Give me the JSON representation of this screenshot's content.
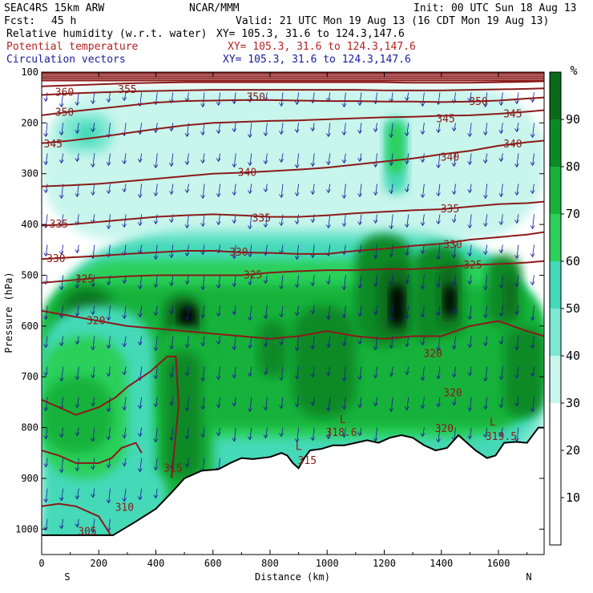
{
  "header": {
    "model": "SEAC4RS 15km ARW",
    "org": "NCAR/MMM",
    "init": "Init: 00 UTC Sun 18 Aug 13",
    "fcst_label": "Fcst:",
    "fcst_value": "45 h",
    "valid": "Valid: 21 UTC Mon 19 Aug 13 (16 CDT Mon 19 Aug 13)",
    "fields": [
      {
        "name": "Relative humidity (w.r.t. water)",
        "xy": "XY= 105.3, 31.6 to 124.3,147.6",
        "color": "#000000"
      },
      {
        "name": "Potential temperature",
        "xy": "XY= 105.3, 31.6 to 124.3,147.6",
        "color": "#b22222"
      },
      {
        "name": "Circulation vectors",
        "xy": "XY= 105.3, 31.6 to 124.3,147.6",
        "color": "#1a1a9c"
      }
    ]
  },
  "chart_data": {
    "type": "heatmap",
    "description_units": "cross-section",
    "xlabel": "Distance (km)",
    "ylabel": "Pressure (hPa)",
    "xlim": [
      0,
      1760
    ],
    "ylim": [
      1050,
      100
    ],
    "x_ticks": [
      0,
      200,
      400,
      600,
      800,
      1000,
      1200,
      1400,
      1600
    ],
    "y_ticks": [
      100,
      200,
      300,
      400,
      500,
      600,
      700,
      800,
      900,
      1000
    ],
    "x_end_labels": {
      "left": "S",
      "right": "N"
    },
    "colorbar": {
      "unit": "%",
      "ticks": [
        10,
        20,
        30,
        40,
        50,
        60,
        70,
        80,
        90
      ],
      "bins": [
        {
          "range": [
            0,
            30
          ],
          "color": "#ffffff"
        },
        {
          "range": [
            30,
            40
          ],
          "color": "#c8f5ec"
        },
        {
          "range": [
            40,
            50
          ],
          "color": "#7ee7d2"
        },
        {
          "range": [
            50,
            60
          ],
          "color": "#44d9b8"
        },
        {
          "range": [
            60,
            70
          ],
          "color": "#2cd05a"
        },
        {
          "range": [
            70,
            80
          ],
          "color": "#18b23a"
        },
        {
          "range": [
            80,
            90
          ],
          "color": "#0a8a25"
        },
        {
          "range": [
            90,
            100
          ],
          "color": "#0a6a1a"
        }
      ]
    },
    "theta_contours": [
      {
        "value": 305,
        "points": [
          [
            0,
            955
          ],
          [
            60,
            950
          ],
          [
            120,
            955
          ],
          [
            200,
            975
          ],
          [
            240,
            1010
          ]
        ]
      },
      {
        "value": 310,
        "points": [
          [
            0,
            845
          ],
          [
            60,
            855
          ],
          [
            120,
            870
          ],
          [
            200,
            870
          ],
          [
            245,
            860
          ],
          [
            280,
            840
          ],
          [
            330,
            830
          ],
          [
            350,
            850
          ]
        ]
      },
      {
        "value": 315,
        "points": [
          [
            0,
            745
          ],
          [
            60,
            760
          ],
          [
            120,
            775
          ],
          [
            200,
            760
          ],
          [
            260,
            740
          ],
          [
            300,
            720
          ],
          [
            380,
            690
          ],
          [
            440,
            660
          ],
          [
            470,
            660
          ],
          [
            480,
            755
          ],
          [
            460,
            870
          ],
          [
            455,
            900
          ]
        ]
      },
      {
        "value": 318.6,
        "labels_only": true,
        "points": [
          [
            1090,
            810
          ]
        ]
      },
      {
        "value": 319.5,
        "labels_only": true,
        "points": [
          [
            1610,
            810
          ]
        ]
      },
      {
        "value": 320,
        "points": [
          [
            0,
            570
          ],
          [
            100,
            580
          ],
          [
            200,
            590
          ],
          [
            300,
            600
          ],
          [
            400,
            605
          ],
          [
            500,
            610
          ],
          [
            600,
            615
          ],
          [
            700,
            620
          ],
          [
            800,
            625
          ],
          [
            900,
            620
          ],
          [
            1000,
            610
          ],
          [
            1100,
            620
          ],
          [
            1200,
            625
          ],
          [
            1300,
            620
          ],
          [
            1400,
            620
          ],
          [
            1500,
            600
          ],
          [
            1600,
            590
          ],
          [
            1700,
            610
          ],
          [
            1760,
            620
          ]
        ]
      },
      {
        "value": 325,
        "points": [
          [
            0,
            515
          ],
          [
            100,
            510
          ],
          [
            200,
            505
          ],
          [
            300,
            502
          ],
          [
            400,
            500
          ],
          [
            500,
            500
          ],
          [
            600,
            500
          ],
          [
            700,
            500
          ],
          [
            800,
            495
          ],
          [
            900,
            492
          ],
          [
            1000,
            490
          ],
          [
            1100,
            490
          ],
          [
            1200,
            488
          ],
          [
            1300,
            488
          ],
          [
            1400,
            485
          ],
          [
            1500,
            480
          ],
          [
            1600,
            478
          ],
          [
            1700,
            475
          ],
          [
            1760,
            472
          ]
        ]
      },
      {
        "value": 330,
        "points": [
          [
            0,
            468
          ],
          [
            100,
            465
          ],
          [
            200,
            462
          ],
          [
            300,
            458
          ],
          [
            400,
            455
          ],
          [
            500,
            452
          ],
          [
            600,
            452
          ],
          [
            700,
            455
          ],
          [
            800,
            456
          ],
          [
            900,
            458
          ],
          [
            1000,
            458
          ],
          [
            1100,
            452
          ],
          [
            1200,
            448
          ],
          [
            1300,
            442
          ],
          [
            1400,
            438
          ],
          [
            1500,
            430
          ],
          [
            1600,
            425
          ],
          [
            1700,
            420
          ],
          [
            1760,
            415
          ]
        ]
      },
      {
        "value": 335,
        "points": [
          [
            0,
            402
          ],
          [
            100,
            400
          ],
          [
            200,
            395
          ],
          [
            300,
            390
          ],
          [
            400,
            385
          ],
          [
            500,
            382
          ],
          [
            600,
            380
          ],
          [
            700,
            382
          ],
          [
            800,
            385
          ],
          [
            900,
            385
          ],
          [
            1000,
            382
          ],
          [
            1100,
            378
          ],
          [
            1200,
            375
          ],
          [
            1300,
            372
          ],
          [
            1400,
            370
          ],
          [
            1500,
            365
          ],
          [
            1600,
            360
          ],
          [
            1700,
            358
          ],
          [
            1760,
            355
          ]
        ]
      },
      {
        "value": 340,
        "points": [
          [
            0,
            325
          ],
          [
            100,
            323
          ],
          [
            200,
            320
          ],
          [
            300,
            315
          ],
          [
            400,
            310
          ],
          [
            500,
            305
          ],
          [
            600,
            300
          ],
          [
            700,
            298
          ],
          [
            800,
            295
          ],
          [
            900,
            292
          ],
          [
            1000,
            288
          ],
          [
            1100,
            282
          ],
          [
            1200,
            276
          ],
          [
            1300,
            270
          ],
          [
            1400,
            262
          ],
          [
            1500,
            255
          ],
          [
            1600,
            245
          ],
          [
            1700,
            238
          ],
          [
            1760,
            235
          ]
        ]
      },
      {
        "value": 345,
        "points": [
          [
            0,
            240
          ],
          [
            100,
            235
          ],
          [
            200,
            228
          ],
          [
            300,
            220
          ],
          [
            400,
            212
          ],
          [
            500,
            205
          ],
          [
            600,
            200
          ],
          [
            700,
            198
          ],
          [
            800,
            196
          ],
          [
            900,
            195
          ],
          [
            1000,
            193
          ],
          [
            1100,
            191
          ],
          [
            1200,
            189
          ],
          [
            1300,
            188
          ],
          [
            1400,
            186
          ],
          [
            1500,
            185
          ],
          [
            1600,
            182
          ],
          [
            1700,
            178
          ],
          [
            1760,
            175
          ]
        ]
      },
      {
        "value": 350,
        "points": [
          [
            0,
            185
          ],
          [
            100,
            178
          ],
          [
            200,
            172
          ],
          [
            300,
            166
          ],
          [
            400,
            160
          ],
          [
            500,
            157
          ],
          [
            600,
            156
          ],
          [
            700,
            155
          ],
          [
            800,
            155
          ],
          [
            900,
            156
          ],
          [
            1000,
            157
          ],
          [
            1100,
            157
          ],
          [
            1200,
            158
          ],
          [
            1300,
            158
          ],
          [
            1400,
            159
          ],
          [
            1500,
            158
          ],
          [
            1600,
            156
          ],
          [
            1700,
            152
          ],
          [
            1760,
            150
          ]
        ]
      },
      {
        "value": 355,
        "points": [
          [
            0,
            145
          ],
          [
            100,
            142
          ],
          [
            200,
            140
          ],
          [
            300,
            138
          ],
          [
            400,
            137
          ],
          [
            500,
            136
          ],
          [
            600,
            135
          ],
          [
            700,
            135
          ],
          [
            800,
            135
          ],
          [
            900,
            135
          ],
          [
            1000,
            135
          ],
          [
            1100,
            135
          ],
          [
            1200,
            136
          ],
          [
            1300,
            136
          ],
          [
            1400,
            136
          ],
          [
            1500,
            135
          ],
          [
            1600,
            134
          ],
          [
            1700,
            133
          ],
          [
            1760,
            132
          ]
        ]
      },
      {
        "value": 360,
        "points": [
          [
            0,
            128
          ],
          [
            100,
            126
          ],
          [
            200,
            124
          ],
          [
            300,
            122
          ],
          [
            400,
            121
          ],
          [
            500,
            120
          ],
          [
            600,
            120
          ],
          [
            700,
            120
          ],
          [
            800,
            120
          ],
          [
            900,
            120
          ],
          [
            1000,
            120
          ],
          [
            1100,
            120
          ],
          [
            1200,
            120
          ],
          [
            1300,
            121
          ],
          [
            1400,
            121
          ],
          [
            1500,
            121
          ],
          [
            1600,
            120
          ],
          [
            1700,
            119
          ],
          [
            1760,
            118
          ]
        ]
      }
    ],
    "contour_label_positions": [
      {
        "text": "360",
        "x": 80,
        "p": 140
      },
      {
        "text": "355",
        "x": 300,
        "p": 135
      },
      {
        "text": "350",
        "x": 80,
        "p": 180
      },
      {
        "text": "350",
        "x": 750,
        "p": 150
      },
      {
        "text": "350",
        "x": 1530,
        "p": 158
      },
      {
        "text": "345",
        "x": 40,
        "p": 242
      },
      {
        "text": "345",
        "x": 1415,
        "p": 192
      },
      {
        "text": "345",
        "x": 1650,
        "p": 183
      },
      {
        "text": "340",
        "x": 720,
        "p": 298
      },
      {
        "text": "340",
        "x": 1430,
        "p": 268
      },
      {
        "text": "340",
        "x": 1650,
        "p": 242
      },
      {
        "text": "335",
        "x": 60,
        "p": 400
      },
      {
        "text": "335",
        "x": 770,
        "p": 388
      },
      {
        "text": "335",
        "x": 1430,
        "p": 370
      },
      {
        "text": "330",
        "x": 50,
        "p": 468
      },
      {
        "text": "330",
        "x": 690,
        "p": 455
      },
      {
        "text": "330",
        "x": 1440,
        "p": 440
      },
      {
        "text": "325",
        "x": 150,
        "p": 508
      },
      {
        "text": "325",
        "x": 740,
        "p": 500
      },
      {
        "text": "325",
        "x": 1510,
        "p": 480
      },
      {
        "text": "320",
        "x": 190,
        "p": 590
      },
      {
        "text": "320",
        "x": 1370,
        "p": 655
      },
      {
        "text": "320",
        "x": 1440,
        "p": 732
      },
      {
        "text": "320",
        "x": 1410,
        "p": 802
      },
      {
        "text": "318.6",
        "x": 1050,
        "p": 810
      },
      {
        "text": "319.5",
        "x": 1610,
        "p": 818
      },
      {
        "text": "315",
        "x": 460,
        "p": 880
      },
      {
        "text": "315",
        "x": 930,
        "p": 865
      },
      {
        "text": "310",
        "x": 290,
        "p": 958
      },
      {
        "text": "305",
        "x": 160,
        "p": 1005
      }
    ],
    "low_markers": [
      {
        "text": "L",
        "x": 1055,
        "p": 785
      },
      {
        "text": "L",
        "x": 1580,
        "p": 790
      },
      {
        "text": "L",
        "x": 900,
        "p": 838
      }
    ],
    "terrain_surface": [
      [
        0,
        1012
      ],
      [
        150,
        1012
      ],
      [
        250,
        1012
      ],
      [
        330,
        985
      ],
      [
        400,
        960
      ],
      [
        460,
        925
      ],
      [
        500,
        900
      ],
      [
        560,
        885
      ],
      [
        620,
        882
      ],
      [
        660,
        870
      ],
      [
        700,
        860
      ],
      [
        740,
        862
      ],
      [
        800,
        858
      ],
      [
        840,
        850
      ],
      [
        860,
        855
      ],
      [
        880,
        870
      ],
      [
        900,
        880
      ],
      [
        920,
        860
      ],
      [
        940,
        845
      ],
      [
        980,
        842
      ],
      [
        1020,
        835
      ],
      [
        1060,
        835
      ],
      [
        1100,
        830
      ],
      [
        1140,
        825
      ],
      [
        1180,
        830
      ],
      [
        1220,
        820
      ],
      [
        1260,
        815
      ],
      [
        1300,
        820
      ],
      [
        1340,
        835
      ],
      [
        1380,
        845
      ],
      [
        1420,
        840
      ],
      [
        1460,
        815
      ],
      [
        1490,
        830
      ],
      [
        1520,
        845
      ],
      [
        1560,
        860
      ],
      [
        1590,
        855
      ],
      [
        1620,
        830
      ],
      [
        1660,
        828
      ],
      [
        1700,
        830
      ],
      [
        1740,
        800
      ],
      [
        1760,
        800
      ]
    ],
    "rh_field_description": "Filled RH contours (10% bins) shaded per colorbar"
  }
}
